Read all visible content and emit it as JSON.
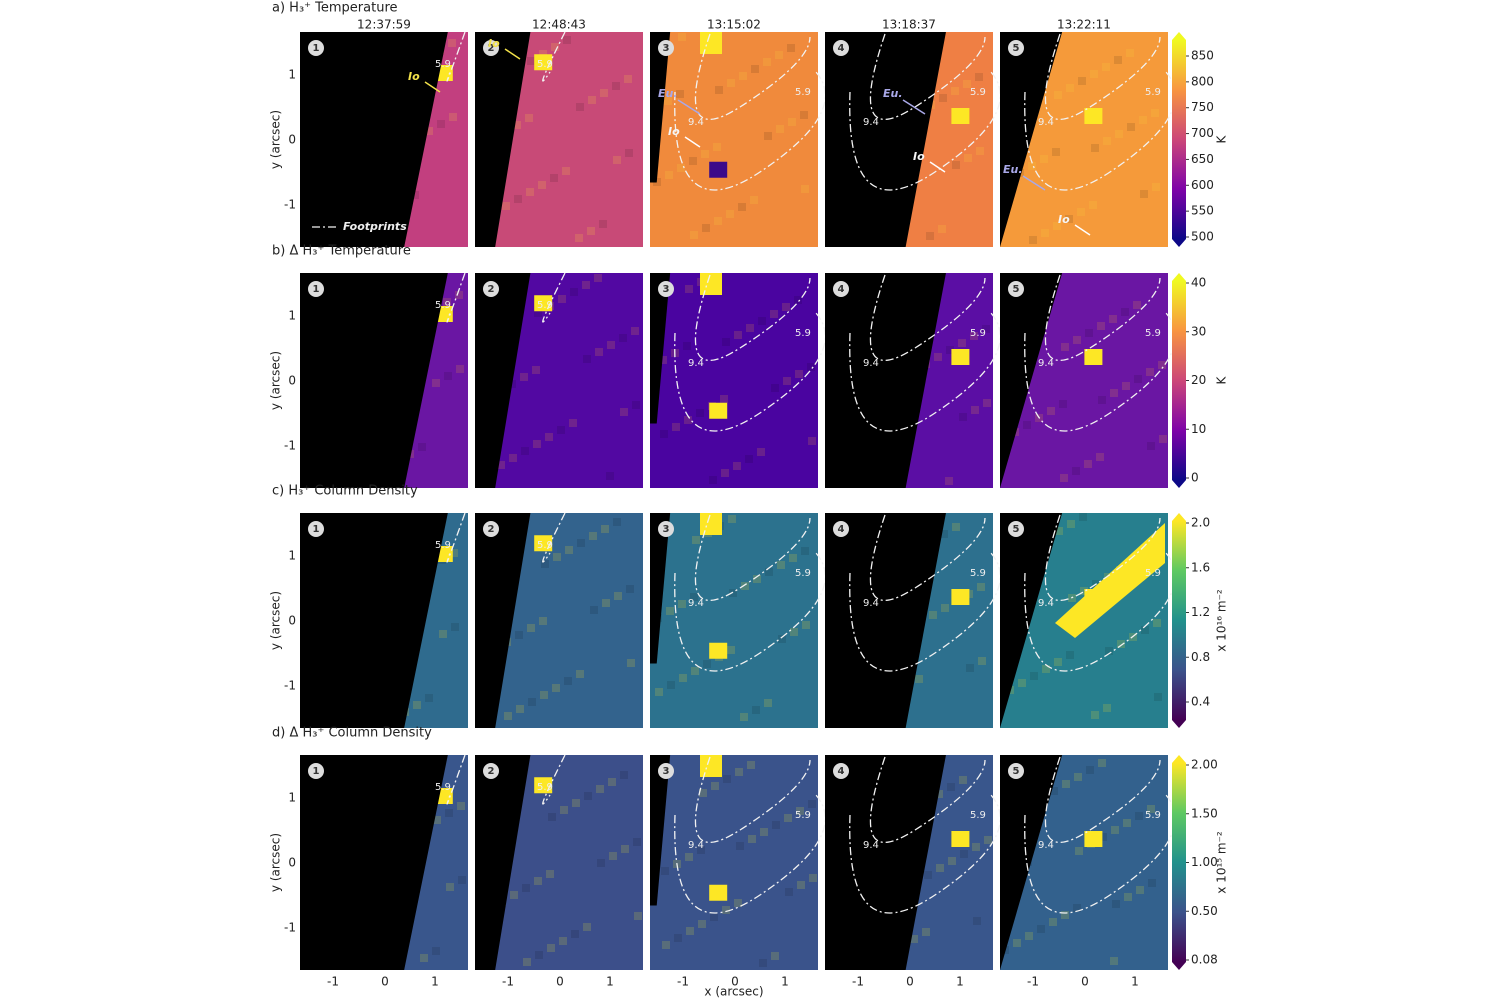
{
  "times": [
    "12:37:59",
    "12:48:43",
    "13:15:02",
    "13:18:37",
    "13:22:11"
  ],
  "panel_numbers": [
    "1",
    "2",
    "3",
    "4",
    "5"
  ],
  "rows": [
    {
      "title": "a) H₃⁺ Temperature",
      "colorbar_ticks": [
        "850",
        "800",
        "750",
        "700",
        "650",
        "600",
        "550",
        "500"
      ],
      "colorbar_label": "K"
    },
    {
      "title": "b) Δ H₃⁺ Temperature",
      "colorbar_ticks": [
        "40",
        "30",
        "20",
        "10",
        "0"
      ],
      "colorbar_label": "K"
    },
    {
      "title": "c) H₃⁺ Column Density",
      "colorbar_ticks": [
        "2.0",
        "1.6",
        "1.2",
        "0.8",
        "0.4"
      ],
      "colorbar_label": "x 10¹⁶ m⁻²"
    },
    {
      "title": "d) Δ H₃⁺ Column Density",
      "colorbar_ticks": [
        "2.00",
        "1.50",
        "1.00",
        "0.50",
        "0.08"
      ],
      "colorbar_label": "x 10¹⁵ m⁻²"
    }
  ],
  "y_axis": {
    "label": "y (arcsec)",
    "ticks": [
      "1",
      "0",
      "-1"
    ]
  },
  "x_axis": {
    "label": "x (arcsec)",
    "ticks": [
      "-1",
      "0",
      "1"
    ]
  },
  "annotations": {
    "io": "Io",
    "europa": "Eu.",
    "footprints": "Footprints"
  },
  "contour_labels": [
    "5.9",
    "9.4"
  ]
}
